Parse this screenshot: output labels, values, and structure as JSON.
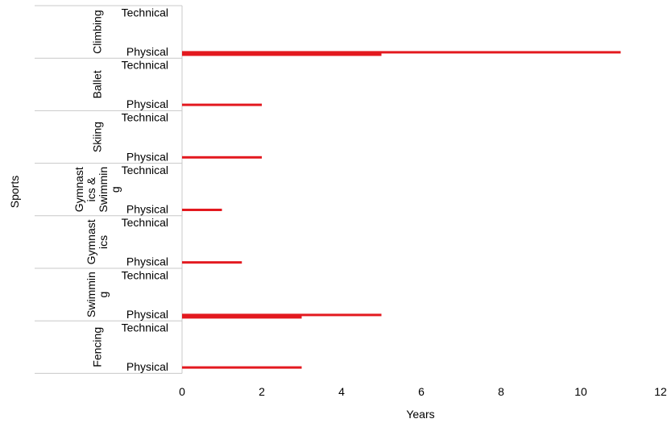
{
  "chart_data": {
    "type": "bar",
    "orientation": "horizontal",
    "xlabel": "Years",
    "ylabel": "Sports",
    "xlim": [
      0,
      12
    ],
    "xticks": [
      "0",
      "2",
      "4",
      "6",
      "8",
      "10",
      "12"
    ],
    "bar_color": "#e3191f",
    "groups": [
      {
        "name": "Climbing",
        "name_lines": [
          "Climbing"
        ],
        "rows": [
          {
            "label": "Technical",
            "bars": []
          },
          {
            "label": "Physical",
            "bars": [
              11,
              5
            ]
          }
        ]
      },
      {
        "name": "Ballet",
        "name_lines": [
          "Ballet"
        ],
        "rows": [
          {
            "label": "Technical",
            "bars": []
          },
          {
            "label": "Physical",
            "bars": [
              2
            ]
          }
        ]
      },
      {
        "name": "Skiing",
        "name_lines": [
          "Skiing"
        ],
        "rows": [
          {
            "label": "Technical",
            "bars": []
          },
          {
            "label": "Physical",
            "bars": [
              2
            ]
          }
        ]
      },
      {
        "name": "Gymnastics & Swimming",
        "name_lines": [
          "Gymnast",
          "ics &",
          "Swimmin",
          "g"
        ],
        "rows": [
          {
            "label": "Technical",
            "bars": []
          },
          {
            "label": "Physical",
            "bars": [
              1
            ]
          }
        ]
      },
      {
        "name": "Gymnastics",
        "name_lines": [
          "Gymnast",
          "ics"
        ],
        "rows": [
          {
            "label": "Technical",
            "bars": []
          },
          {
            "label": "Physical",
            "bars": [
              1.5
            ]
          }
        ]
      },
      {
        "name": "Swimming",
        "name_lines": [
          "Swimmin",
          "g"
        ],
        "rows": [
          {
            "label": "Technical",
            "bars": []
          },
          {
            "label": "Physical",
            "bars": [
              5,
              3
            ]
          }
        ]
      },
      {
        "name": "Fencing",
        "name_lines": [
          "Fencing"
        ],
        "rows": [
          {
            "label": "Technical",
            "bars": []
          },
          {
            "label": "Physical",
            "bars": [
              3
            ]
          }
        ]
      }
    ]
  }
}
